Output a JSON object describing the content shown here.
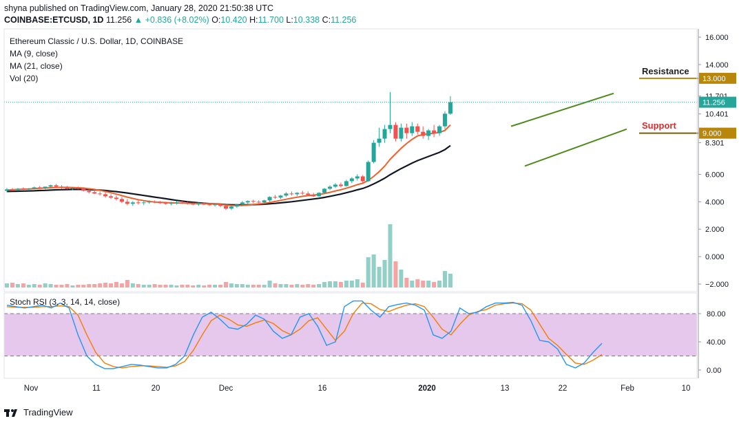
{
  "header": {
    "published": "shyna published on TradingView.com, January 28, 2020 21:50:38 UTC",
    "symbol": "COINBASE:ETCUSD, 1D",
    "price_val": "11.256",
    "change": "▲ +0.836 (+8.02%)",
    "ohlc_o_label": "O:",
    "ohlc_o": "10.420",
    "ohlc_h_label": "H:",
    "ohlc_h": "11.700",
    "ohlc_l_label": "L:",
    "ohlc_l": "10.338",
    "ohlc_c_label": "C:",
    "ohlc_c": "11.256"
  },
  "legend": {
    "title": "Ethereum Classic / U.S. Dollar, 1D, COINBASE",
    "ma9": "MA (9, close)",
    "ma21": "MA (21, close)",
    "vol": "Vol (20)",
    "rsi": "Stoch RSI (3, 3, 14, 14, close)"
  },
  "annotations": {
    "resistance": "Resistance",
    "support": "Support",
    "resistance_price": "13.000",
    "support_price": "9.000"
  },
  "footer": {
    "brand": "TradingView"
  },
  "colors": {
    "up": "#26a69a",
    "down": "#ef5350",
    "ma9": "#f0602b",
    "ma21": "#131722",
    "vol_up": "#92cfc6",
    "vol_down": "#f5a3a3",
    "trend": "#4f8a1c",
    "resistance_label": "#1e1e1e",
    "support_label": "#d32f2f",
    "price_tag_bg": "#b8860b",
    "current_tag_bg": "#26a69a",
    "rsi_k": "#2196f3",
    "rsi_d": "#f57c00",
    "rsi_band": "#e1bee7"
  },
  "chart_data": [
    {
      "type": "candlestick",
      "symbol": "COINBASE:ETCUSD",
      "timeframe": "1D",
      "y_ticks": [
        "16.000",
        "14.000",
        "13.000",
        "11.701",
        "11.256",
        "10.401",
        "9.000",
        "8.301",
        "6.000",
        "4.000",
        "2.000",
        "0.000",
        "−2.000"
      ],
      "x_ticks": [
        "Nov",
        "11",
        "20",
        "Dec",
        "16",
        "2020",
        "13",
        "22",
        "Feb",
        "10"
      ],
      "levels": {
        "resistance": 13.0,
        "support": 9.0,
        "last": 11.256
      },
      "ohlc_approx": [
        [
          4.8,
          5.0,
          4.7,
          4.9
        ],
        [
          4.9,
          5.0,
          4.8,
          4.85
        ],
        [
          4.85,
          5.0,
          4.8,
          4.95
        ],
        [
          4.95,
          5.05,
          4.85,
          4.9
        ],
        [
          4.9,
          5.0,
          4.8,
          4.95
        ],
        [
          4.95,
          5.1,
          4.9,
          5.05
        ],
        [
          5.05,
          5.15,
          4.95,
          5.0
        ],
        [
          5.0,
          5.1,
          4.9,
          5.1
        ],
        [
          5.1,
          5.25,
          5.0,
          5.2
        ],
        [
          5.2,
          5.3,
          5.05,
          5.1
        ],
        [
          5.1,
          5.2,
          4.95,
          5.05
        ],
        [
          5.05,
          5.15,
          4.9,
          4.95
        ],
        [
          4.95,
          5.05,
          4.85,
          5.0
        ],
        [
          5.0,
          5.1,
          4.9,
          4.95
        ],
        [
          4.95,
          5.05,
          4.75,
          4.8
        ],
        [
          4.8,
          4.9,
          4.6,
          4.7
        ],
        [
          4.7,
          4.85,
          4.55,
          4.6
        ],
        [
          4.6,
          4.75,
          4.45,
          4.55
        ],
        [
          4.55,
          4.7,
          4.3,
          4.4
        ],
        [
          4.4,
          4.55,
          4.2,
          4.3
        ],
        [
          4.3,
          4.45,
          4.1,
          4.2
        ],
        [
          4.2,
          4.35,
          3.9,
          4.0
        ],
        [
          4.0,
          4.2,
          3.75,
          3.85
        ],
        [
          3.85,
          4.05,
          3.7,
          3.95
        ],
        [
          3.95,
          4.1,
          3.8,
          3.9
        ],
        [
          3.9,
          4.05,
          3.75,
          3.95
        ],
        [
          3.95,
          4.1,
          3.85,
          4.0
        ],
        [
          4.0,
          4.1,
          3.9,
          3.95
        ],
        [
          3.95,
          4.05,
          3.85,
          3.9
        ],
        [
          3.9,
          4.0,
          3.8,
          3.85
        ],
        [
          3.85,
          4.0,
          3.75,
          3.9
        ],
        [
          3.9,
          4.05,
          3.8,
          3.95
        ],
        [
          3.95,
          4.05,
          3.85,
          3.9
        ],
        [
          3.9,
          4.0,
          3.8,
          3.85
        ],
        [
          3.85,
          3.95,
          3.75,
          3.8
        ],
        [
          3.8,
          3.95,
          3.7,
          3.85
        ],
        [
          3.85,
          3.95,
          3.75,
          3.8
        ],
        [
          3.8,
          3.9,
          3.7,
          3.75
        ],
        [
          3.75,
          3.9,
          3.65,
          3.8
        ],
        [
          3.8,
          3.9,
          3.6,
          3.7
        ],
        [
          3.7,
          3.8,
          3.4,
          3.5
        ],
        [
          3.5,
          3.75,
          3.4,
          3.65
        ],
        [
          3.65,
          3.85,
          3.55,
          3.8
        ],
        [
          3.8,
          4.05,
          3.7,
          3.95
        ],
        [
          3.95,
          4.1,
          3.85,
          4.05
        ],
        [
          4.05,
          4.15,
          3.9,
          4.0
        ],
        [
          4.0,
          4.1,
          3.9,
          3.95
        ],
        [
          3.95,
          4.15,
          3.9,
          4.1
        ],
        [
          4.1,
          4.4,
          4.0,
          4.35
        ],
        [
          4.35,
          4.5,
          4.2,
          4.3
        ],
        [
          4.3,
          4.5,
          4.2,
          4.45
        ],
        [
          4.45,
          4.7,
          4.35,
          4.6
        ],
        [
          4.6,
          4.75,
          4.45,
          4.55
        ],
        [
          4.55,
          4.7,
          4.4,
          4.65
        ],
        [
          4.65,
          4.8,
          4.5,
          4.6
        ],
        [
          4.6,
          4.75,
          4.4,
          4.5
        ],
        [
          4.5,
          4.65,
          4.35,
          4.4
        ],
        [
          4.4,
          4.7,
          4.35,
          4.65
        ],
        [
          4.65,
          5.0,
          4.6,
          4.95
        ],
        [
          4.95,
          5.2,
          4.85,
          5.1
        ],
        [
          5.1,
          5.35,
          5.0,
          5.25
        ],
        [
          5.25,
          5.4,
          5.05,
          5.15
        ],
        [
          5.15,
          5.6,
          5.1,
          5.5
        ],
        [
          5.5,
          5.8,
          5.35,
          5.7
        ],
        [
          5.7,
          6.0,
          5.55,
          5.85
        ],
        [
          5.85,
          5.95,
          5.4,
          5.5
        ],
        [
          5.5,
          7.0,
          5.45,
          6.9
        ],
        [
          6.9,
          8.5,
          6.8,
          8.3
        ],
        [
          8.3,
          9.4,
          8.0,
          8.6
        ],
        [
          8.6,
          9.6,
          8.3,
          9.3
        ],
        [
          9.3,
          12.0,
          9.0,
          9.6
        ],
        [
          9.6,
          9.8,
          8.4,
          8.6
        ],
        [
          8.6,
          9.7,
          8.4,
          9.4
        ],
        [
          9.4,
          9.7,
          8.6,
          9.0
        ],
        [
          9.0,
          9.8,
          8.8,
          9.5
        ],
        [
          9.5,
          9.7,
          8.9,
          9.1
        ],
        [
          9.1,
          9.5,
          8.6,
          8.8
        ],
        [
          8.8,
          9.3,
          8.5,
          9.2
        ],
        [
          9.2,
          9.6,
          8.7,
          9.0
        ],
        [
          9.0,
          9.6,
          8.8,
          9.5
        ],
        [
          9.5,
          10.6,
          9.3,
          10.42
        ],
        [
          10.42,
          11.7,
          10.338,
          11.256
        ]
      ],
      "ma9_approx": [
        4.85,
        4.88,
        4.9,
        4.92,
        4.93,
        4.96,
        4.98,
        5.0,
        5.02,
        5.04,
        5.05,
        5.05,
        5.04,
        5.02,
        5.0,
        4.95,
        4.9,
        4.83,
        4.75,
        4.66,
        4.56,
        4.45,
        4.34,
        4.24,
        4.15,
        4.08,
        4.02,
        3.98,
        3.96,
        3.94,
        3.92,
        3.91,
        3.9,
        3.89,
        3.88,
        3.87,
        3.86,
        3.85,
        3.83,
        3.81,
        3.76,
        3.73,
        3.72,
        3.73,
        3.76,
        3.8,
        3.84,
        3.88,
        3.95,
        4.02,
        4.1,
        4.18,
        4.26,
        4.33,
        4.4,
        4.45,
        4.49,
        4.53,
        4.6,
        4.69,
        4.79,
        4.88,
        4.99,
        5.11,
        5.25,
        5.35,
        5.55,
        5.85,
        6.2,
        6.6,
        7.1,
        7.5,
        7.9,
        8.25,
        8.55,
        8.8,
        8.9,
        8.95,
        9.0,
        9.05,
        9.2,
        9.6
      ],
      "ma21_approx": [
        4.75,
        4.76,
        4.77,
        4.78,
        4.79,
        4.8,
        4.82,
        4.83,
        4.85,
        4.87,
        4.88,
        4.89,
        4.9,
        4.9,
        4.9,
        4.89,
        4.87,
        4.85,
        4.82,
        4.78,
        4.74,
        4.69,
        4.64,
        4.58,
        4.52,
        4.46,
        4.4,
        4.34,
        4.28,
        4.22,
        4.16,
        4.1,
        4.05,
        4.0,
        3.96,
        3.92,
        3.89,
        3.86,
        3.84,
        3.82,
        3.79,
        3.78,
        3.77,
        3.77,
        3.78,
        3.79,
        3.8,
        3.82,
        3.85,
        3.88,
        3.92,
        3.96,
        4.0,
        4.05,
        4.1,
        4.15,
        4.2,
        4.25,
        4.32,
        4.4,
        4.48,
        4.56,
        4.66,
        4.76,
        4.87,
        4.97,
        5.12,
        5.3,
        5.5,
        5.72,
        5.97,
        6.2,
        6.42,
        6.62,
        6.82,
        7.0,
        7.15,
        7.3,
        7.45,
        7.6,
        7.8,
        8.1
      ],
      "volume_approx": [
        0.3,
        0.35,
        0.25,
        0.3,
        0.2,
        0.25,
        0.2,
        0.3,
        0.25,
        0.2,
        0.2,
        0.25,
        0.15,
        0.2,
        0.2,
        0.25,
        0.25,
        0.3,
        0.35,
        0.3,
        0.4,
        0.3,
        0.55,
        0.3,
        0.25,
        0.2,
        0.2,
        0.25,
        0.2,
        0.2,
        0.2,
        0.15,
        0.2,
        0.2,
        0.15,
        0.2,
        0.15,
        0.2,
        0.2,
        0.2,
        0.4,
        0.3,
        0.25,
        0.25,
        0.2,
        0.2,
        0.2,
        0.2,
        0.5,
        0.3,
        0.25,
        0.25,
        0.2,
        0.25,
        0.2,
        0.25,
        0.2,
        0.25,
        0.4,
        0.45,
        0.45,
        0.4,
        0.5,
        0.5,
        0.6,
        0.35,
        2.2,
        2.4,
        1.5,
        2.0,
        4.6,
        1.9,
        1.3,
        0.7,
        0.5,
        0.6,
        0.5,
        0.5,
        0.4,
        0.5,
        1.2,
        1.0
      ],
      "volume_y_ticks": [
        "2.000",
        "0.000",
        "−2.000"
      ]
    },
    {
      "type": "line",
      "name": "Stoch RSI (3, 3, 14, 14, close)",
      "y_ticks": [
        "80.00",
        "40.00",
        "0.00"
      ],
      "band": [
        20,
        80
      ],
      "k_approx": [
        92,
        90,
        88,
        90,
        92,
        88,
        95,
        88,
        50,
        20,
        8,
        2,
        2,
        5,
        8,
        7,
        5,
        3,
        3,
        8,
        20,
        50,
        75,
        82,
        72,
        60,
        58,
        65,
        78,
        72,
        55,
        45,
        50,
        75,
        80,
        62,
        35,
        40,
        90,
        98,
        98,
        85,
        75,
        90,
        93,
        95,
        92,
        85,
        50,
        45,
        55,
        88,
        80,
        82,
        90,
        95,
        95,
        96,
        92,
        70,
        42,
        40,
        30,
        8,
        3,
        10,
        25,
        38
      ],
      "d_approx": [
        90,
        89,
        89,
        89,
        90,
        90,
        91,
        90,
        78,
        50,
        25,
        10,
        5,
        3,
        5,
        6,
        6,
        5,
        4,
        6,
        12,
        28,
        50,
        70,
        78,
        72,
        64,
        62,
        67,
        71,
        66,
        56,
        50,
        58,
        70,
        74,
        58,
        42,
        55,
        80,
        95,
        94,
        86,
        83,
        88,
        92,
        94,
        90,
        75,
        58,
        50,
        65,
        78,
        83,
        86,
        92,
        94,
        95,
        94,
        85,
        65,
        45,
        35,
        22,
        10,
        8,
        14,
        22
      ]
    }
  ]
}
